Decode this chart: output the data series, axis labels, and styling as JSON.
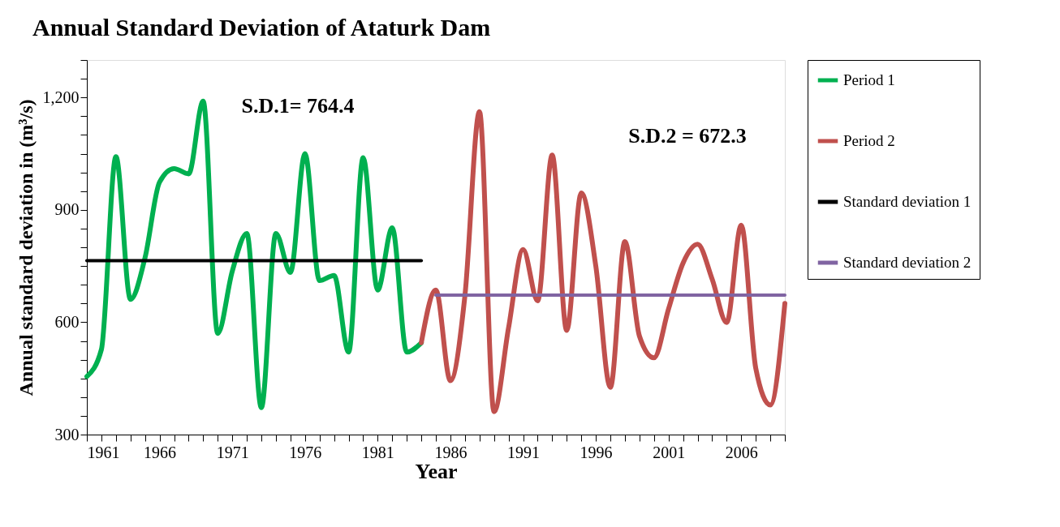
{
  "chart_data": {
    "type": "line",
    "title": "Annual Standard Deviation of Ataturk Dam",
    "xlabel": "Year",
    "ylabel": "Annual standard deviation in (m³/s)",
    "xlim": [
      1961,
      2009
    ],
    "ylim": [
      300,
      1300
    ],
    "xticks": [
      1961,
      {
        "value": 1962,
        "label": null
      },
      {
        "value": 1963,
        "label": null
      },
      {
        "value": 1964,
        "label": null
      },
      {
        "value": 1965,
        "label": null
      },
      1966,
      {
        "value": 1967,
        "label": null
      },
      {
        "value": 1968,
        "label": null
      },
      {
        "value": 1969,
        "label": null
      },
      {
        "value": 1970,
        "label": null
      },
      1971,
      {
        "value": 1972,
        "label": null
      },
      {
        "value": 1973,
        "label": null
      },
      {
        "value": 1974,
        "label": null
      },
      {
        "value": 1975,
        "label": null
      },
      1976,
      {
        "value": 1977,
        "label": null
      },
      {
        "value": 1978,
        "label": null
      },
      {
        "value": 1979,
        "label": null
      },
      {
        "value": 1980,
        "label": null
      },
      1981,
      {
        "value": 1982,
        "label": null
      },
      {
        "value": 1983,
        "label": null
      },
      {
        "value": 1984,
        "label": null
      },
      {
        "value": 1985,
        "label": null
      },
      1986,
      {
        "value": 1987,
        "label": null
      },
      {
        "value": 1988,
        "label": null
      },
      {
        "value": 1989,
        "label": null
      },
      {
        "value": 1990,
        "label": null
      },
      1991,
      {
        "value": 1992,
        "label": null
      },
      {
        "value": 1993,
        "label": null
      },
      {
        "value": 1994,
        "label": null
      },
      {
        "value": 1995,
        "label": null
      },
      1996,
      {
        "value": 1997,
        "label": null
      },
      {
        "value": 1998,
        "label": null
      },
      {
        "value": 1999,
        "label": null
      },
      {
        "value": 2000,
        "label": null
      },
      2001,
      {
        "value": 2002,
        "label": null
      },
      {
        "value": 2003,
        "label": null
      },
      {
        "value": 2004,
        "label": null
      },
      {
        "value": 2005,
        "label": null
      },
      2006,
      {
        "value": 2007,
        "label": null
      },
      {
        "value": 2008,
        "label": null
      },
      {
        "value": 2009,
        "label": null
      }
    ],
    "yticks": [
      300,
      {
        "value": 350,
        "label": null
      },
      {
        "value": 400,
        "label": null
      },
      {
        "value": 450,
        "label": null
      },
      {
        "value": 500,
        "label": null
      },
      {
        "value": 550,
        "label": null
      },
      600,
      {
        "value": 650,
        "label": null
      },
      {
        "value": 700,
        "label": null
      },
      {
        "value": 750,
        "label": null
      },
      {
        "value": 800,
        "label": null
      },
      {
        "value": 850,
        "label": null
      },
      900,
      {
        "value": 950,
        "label": null
      },
      {
        "value": 1000,
        "label": null
      },
      {
        "value": 1050,
        "label": null
      },
      {
        "value": 1100,
        "label": null
      },
      {
        "value": 1150,
        "label": null
      },
      {
        "value": 1200,
        "label": "1,200"
      },
      {
        "value": 1250,
        "label": null
      },
      {
        "value": 1300,
        "label": null
      }
    ],
    "grid": false,
    "legend": "right",
    "marker": "none",
    "line_style": "solid",
    "series": [
      {
        "name": "Period 1",
        "color": "#00b050",
        "x": [
          1961,
          1962,
          1963,
          1964,
          1965,
          1966,
          1967,
          1968,
          1969,
          1970,
          1971,
          1972,
          1973,
          1974,
          1975,
          1976,
          1977,
          1978,
          1979,
          1980,
          1981,
          1982,
          1983,
          1984
        ],
        "values": [
          455,
          527,
          1042,
          661,
          772,
          974,
          1010,
          996,
          1190,
          570,
          736,
          837,
          372,
          837,
          733,
          1050,
          711,
          725,
          520,
          1039,
          686,
          852,
          520,
          545
        ]
      },
      {
        "name": "Period 2",
        "color": "#c0504d",
        "x": [
          1984,
          1985,
          1986,
          1987,
          1988,
          1989,
          1990,
          1991,
          1992,
          1993,
          1994,
          1995,
          1996,
          1997,
          1998,
          1999,
          2000,
          2001,
          2002,
          2003,
          2004,
          2005,
          2006,
          2007,
          2008,
          2009
        ],
        "values": [
          545,
          686,
          444,
          671,
          1162,
          361,
          585,
          794,
          657,
          1046,
          578,
          945,
          750,
          426,
          815,
          563,
          505,
          635,
          758,
          808,
          715,
          599,
          859,
          477,
          379,
          650
        ]
      },
      {
        "name": "Standard deviation 1",
        "color": "#000000",
        "x": [
          1961,
          1984
        ],
        "values": [
          764.4,
          764.4
        ]
      },
      {
        "name": "Standard deviation 2",
        "color": "#8064a2",
        "x": [
          1985,
          2009
        ],
        "values": [
          672.3,
          672.3
        ]
      }
    ],
    "annotations": [
      "S.D.1= 764.4",
      "S.D.2 = 672.3"
    ]
  }
}
